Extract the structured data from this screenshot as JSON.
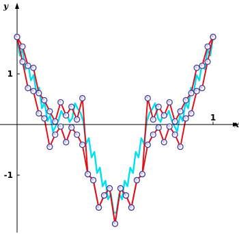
{
  "chart_data": {
    "type": "line",
    "title": "",
    "xlabel": "x",
    "ylabel": "y",
    "xlim": [
      -0.04,
      1.04
    ],
    "ylim": [
      -2.08,
      2.08
    ],
    "x_ticks": [
      {
        "value": 1,
        "label": "1"
      }
    ],
    "y_ticks": [
      {
        "value": 1,
        "label": "1"
      },
      {
        "value": -1,
        "label": "-1"
      }
    ],
    "grid": false,
    "legend": "none",
    "colors": {
      "outer_series": "#e0101c",
      "inner_series": "#00e0f0",
      "markers": "#3a3a8a",
      "axes": "#000000"
    },
    "series": [
      {
        "style": "cyan-oscillation",
        "x": [
          0.0,
          0.0141,
          0.0282,
          0.0423,
          0.0563,
          0.0704,
          0.0845,
          0.0986,
          0.1127,
          0.1268,
          0.1408,
          0.1549,
          0.169,
          0.1831,
          0.1972,
          0.2113,
          0.2254,
          0.2394,
          0.2535,
          0.2676,
          0.2817,
          0.2958,
          0.3099,
          0.3239,
          0.338,
          0.3521,
          0.3662,
          0.3803,
          0.3944,
          0.4085,
          0.4225,
          0.4366,
          0.4507,
          0.4648,
          0.4789,
          0.493,
          0.507,
          0.5211,
          0.5352,
          0.5493,
          0.5634,
          0.5775,
          0.5915,
          0.6056,
          0.6197,
          0.6338,
          0.6479,
          0.662,
          0.6761,
          0.6901,
          0.7042,
          0.7183,
          0.7324,
          0.7465,
          0.7606,
          0.7746,
          0.7887,
          0.8028,
          0.8169,
          0.831,
          0.8451,
          0.8592,
          0.8732,
          0.8873,
          0.9014,
          0.9155,
          0.9296,
          0.9437,
          0.9577,
          0.9718,
          0.9859,
          1.0
        ],
        "y": [
          1.73,
          1.36,
          1.48,
          1.09,
          1.2,
          0.87,
          0.98,
          0.62,
          0.73,
          0.32,
          0.43,
          0.07,
          0.18,
          -0.14,
          -0.03,
          0.08,
          0.27,
          0.16,
          0.23,
          0.05,
          0.13,
          0.42,
          0.31,
          0.23,
          0.06,
          -0.38,
          -0.27,
          -0.65,
          -0.54,
          -0.96,
          -0.85,
          -1.22,
          -1.11,
          -1.48,
          -1.37,
          -1.74,
          -1.74,
          -1.37,
          -1.48,
          -1.11,
          -1.22,
          -0.85,
          -0.96,
          -0.54,
          -0.65,
          -0.27,
          -0.38,
          0.06,
          0.23,
          0.31,
          0.42,
          0.13,
          0.05,
          0.23,
          0.16,
          0.27,
          0.08,
          -0.03,
          -0.14,
          0.18,
          0.07,
          0.43,
          0.32,
          0.73,
          0.62,
          0.98,
          0.87,
          1.2,
          1.09,
          1.48,
          1.36,
          1.73
        ]
      },
      {
        "style": "red-lower",
        "x": [
          0.0,
          0.0278,
          0.0556,
          0.0833,
          0.1111,
          0.1389,
          0.1667,
          0.1944,
          0.2222,
          0.25,
          0.2778,
          0.3056,
          0.3333,
          0.3611,
          0.3889,
          0.4167,
          0.4444,
          0.4722,
          0.5,
          0.5278,
          0.5556,
          0.5833,
          0.6111,
          0.6389,
          0.6667,
          0.6944,
          0.7222,
          0.75,
          0.7778,
          0.8056,
          0.8333,
          0.8611,
          0.8889,
          0.9167,
          0.9444,
          0.9722,
          1.0
        ],
        "y": [
          1.73,
          1.24,
          0.72,
          0.66,
          0.22,
          0.12,
          -0.44,
          -0.2,
          -0.04,
          -0.35,
          -0.06,
          -0.2,
          -0.4,
          -0.98,
          -1.1,
          -1.64,
          -1.4,
          -1.26,
          -1.96,
          -1.26,
          -1.4,
          -1.64,
          -1.1,
          -0.98,
          -0.4,
          -0.2,
          -0.06,
          -0.35,
          -0.04,
          -0.2,
          -0.44,
          0.12,
          0.22,
          0.66,
          0.72,
          1.24,
          1.73
        ]
      },
      {
        "style": "red-upper",
        "x": [
          0.0,
          0.0278,
          0.0556,
          0.0833,
          0.1111,
          0.1389,
          0.1667,
          0.1944,
          0.2222,
          0.25,
          0.2778,
          0.3056,
          0.3333,
          0.3611,
          0.3889,
          0.4167,
          0.4444,
          0.4722,
          0.5,
          0.5278,
          0.5556,
          0.5833,
          0.6111,
          0.6389,
          0.6667,
          0.6944,
          0.7222,
          0.75,
          0.7778,
          0.8056,
          0.8333,
          0.8611,
          0.8889,
          0.9167,
          0.9444,
          0.9722,
          1.0
        ],
        "y": [
          1.73,
          1.54,
          1.16,
          1.12,
          0.62,
          0.48,
          0.26,
          0.06,
          0.44,
          0.18,
          0.35,
          0.1,
          0.52,
          -0.98,
          -1.1,
          -1.64,
          -1.4,
          -1.26,
          -1.96,
          -1.26,
          -1.4,
          -1.64,
          -1.1,
          -0.98,
          0.52,
          0.1,
          0.35,
          0.18,
          0.44,
          0.06,
          0.26,
          0.48,
          0.62,
          1.12,
          1.16,
          1.54,
          1.73
        ]
      }
    ]
  }
}
